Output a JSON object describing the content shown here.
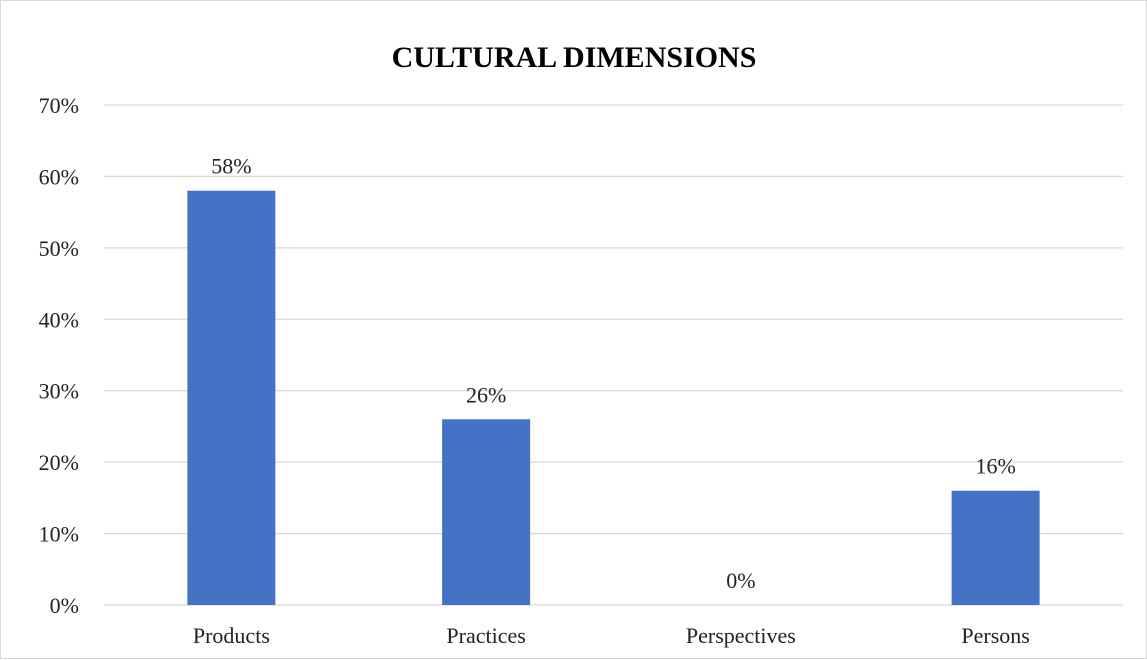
{
  "chart_data": {
    "type": "bar",
    "title": "CULTURAL DIMENSIONS",
    "xlabel": "",
    "ylabel": "",
    "categories": [
      "Products",
      "Practices",
      "Perspectives",
      "Persons"
    ],
    "values": [
      58,
      26,
      0,
      16
    ],
    "value_suffix": "%",
    "ylim": [
      0,
      70
    ],
    "yticks": [
      0,
      10,
      20,
      30,
      40,
      50,
      60,
      70
    ],
    "ytick_labels": [
      "0%",
      "10%",
      "20%",
      "30%",
      "40%",
      "50%",
      "60%",
      "70%"
    ],
    "data_labels": [
      "58%",
      "26%",
      "0%",
      "16%"
    ],
    "grid": true,
    "legend": "none",
    "bar_color": "#4472C4"
  }
}
